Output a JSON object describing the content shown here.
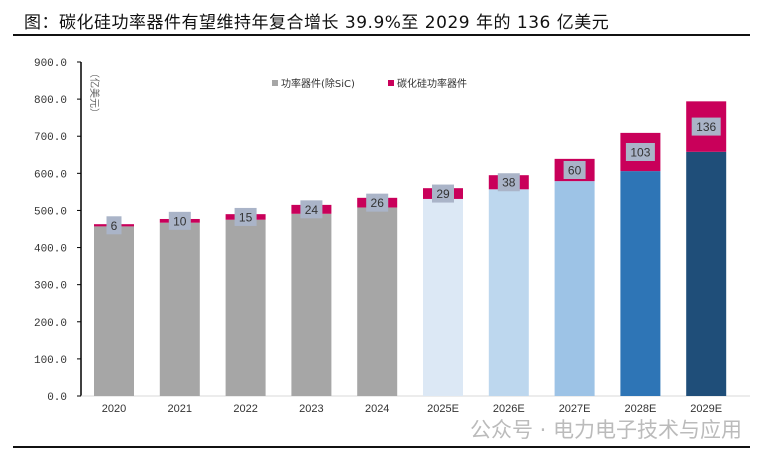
{
  "title": "图：碳化硅功率器件有望维持年复合增长 39.9%至 2029 年的 136 亿美元",
  "watermark": "公众号 · 电力电子技术与应用",
  "chart_data": {
    "type": "bar",
    "stacked": true,
    "title": "图：碳化硅功率器件有望维持年复合增长 39.9%至 2029 年的 136 亿美元",
    "ylabel": "（亿美元）",
    "xlabel": "",
    "ylim": [
      0,
      900
    ],
    "yticks": [
      "0.0",
      "100.0",
      "200.0",
      "300.0",
      "400.0",
      "500.0",
      "600.0",
      "700.0",
      "800.0",
      "900.0"
    ],
    "grid": false,
    "legend_position": "top-center",
    "categories": [
      "2020",
      "2021",
      "2022",
      "2023",
      "2024",
      "2025E",
      "2026E",
      "2027E",
      "2028E",
      "2029E"
    ],
    "series": [
      {
        "name": "功率器件(除SiC)",
        "values": [
          457,
          467,
          475,
          491,
          508,
          531,
          557,
          579,
          606,
          658
        ],
        "colors": [
          "#a6a6a6",
          "#a6a6a6",
          "#a6a6a6",
          "#a6a6a6",
          "#a6a6a6",
          "#dce8f5",
          "#bdd7ee",
          "#9dc3e6",
          "#2e75b6",
          "#1f4e79"
        ]
      },
      {
        "name": "碳化硅功率器件",
        "values": [
          6,
          10,
          15,
          24,
          26,
          29,
          38,
          60,
          103,
          136
        ],
        "color": "#c9005a"
      }
    ],
    "data_labels": [
      "6",
      "10",
      "15",
      "24",
      "26",
      "29",
      "38",
      "60",
      "103",
      "136"
    ],
    "data_label_bg": "#aab4c8"
  }
}
